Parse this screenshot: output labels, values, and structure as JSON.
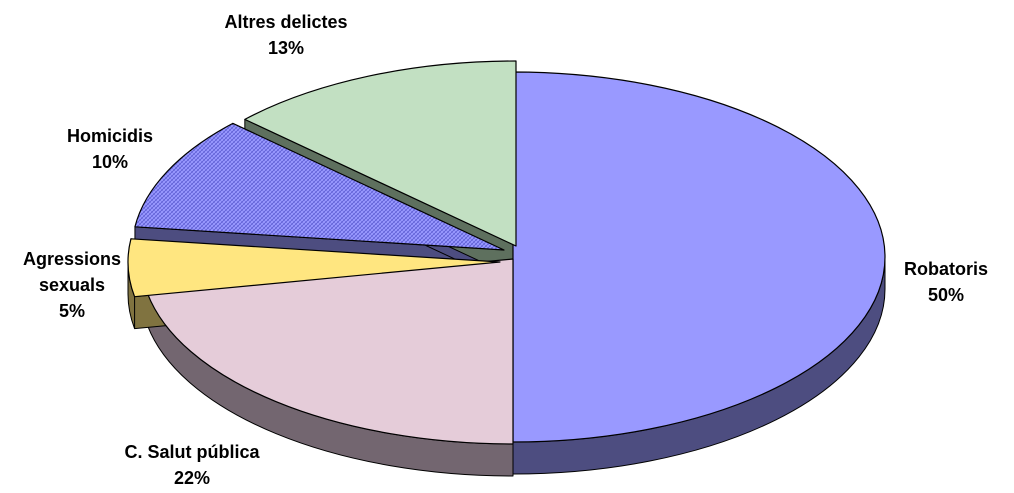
{
  "chart_data": {
    "type": "pie",
    "style": "3d-exploded",
    "slices": [
      {
        "label": "Robatoris",
        "value": 50,
        "pct_label": "50%",
        "top_color": "#9999ff",
        "side_color": "#4d4d80"
      },
      {
        "label": "C. Salut pública",
        "value": 22,
        "pct_label": "22%",
        "top_color": "#e5ccd9",
        "side_color": "#736670"
      },
      {
        "label": "Agressions sexuals",
        "value": 5,
        "pct_label": "5%",
        "top_color": "#ffe680",
        "side_color": "#807340"
      },
      {
        "label": "Homicidis",
        "value": 10,
        "pct_label": "10%",
        "top_color": "#9999ff",
        "side_color": "#4d4d80",
        "pattern": "crosshatch"
      },
      {
        "label": "Altres delictes",
        "value": 13,
        "pct_label": "13%",
        "top_color": "#c2e0c2",
        "side_color": "#5e705e"
      }
    ]
  }
}
